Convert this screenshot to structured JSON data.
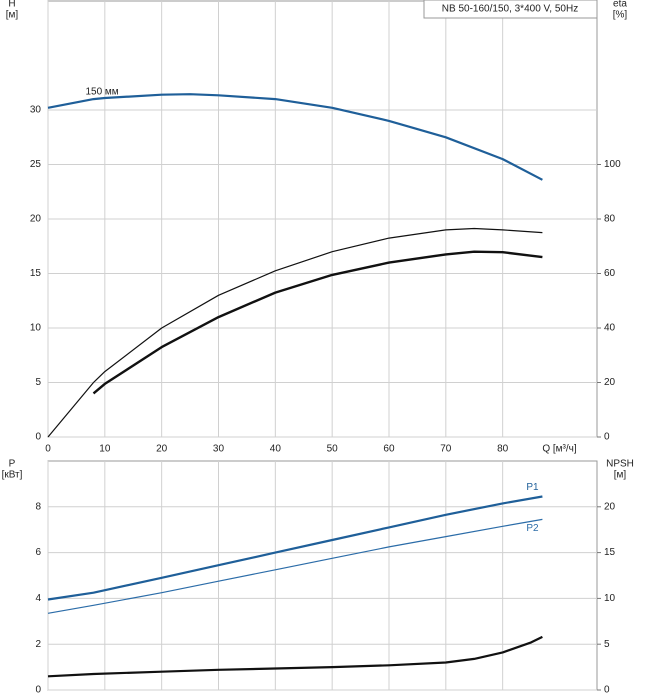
{
  "chart_data": [
    {
      "type": "line",
      "title": "NB 50-160/150, 3*400 V, 50Hz",
      "y_label": "H",
      "y_unit": "[м]",
      "y2_label": "eta",
      "y2_unit": "[%]",
      "x_label": "Q [м³/ч]",
      "xlim": [
        0,
        96.6
      ],
      "xticks": [
        0,
        10,
        20,
        30,
        40,
        50,
        60,
        70,
        80
      ],
      "ylim": [
        0,
        40
      ],
      "yticks": [
        0,
        5,
        10,
        15,
        20,
        25,
        30
      ],
      "y2lim": [
        0,
        160
      ],
      "y2ticks": [
        0,
        20,
        40,
        60,
        80,
        100
      ],
      "grid": true,
      "series": [
        {
          "annotation": "150 мм",
          "color": "#1f5f99",
          "line_width": 2.2,
          "x": [
            0,
            8,
            10,
            20,
            25,
            30,
            40,
            50,
            60,
            70,
            80,
            87
          ],
          "values": [
            30.2,
            31,
            31.1,
            31.4,
            31.45,
            31.35,
            31.0,
            30.2,
            29.0,
            27.5,
            25.5,
            23.6
          ]
        },
        {
          "color": "#111111",
          "line_width": 1.2,
          "axis": "y2",
          "x": [
            0,
            8,
            10,
            20,
            30,
            40,
            50,
            60,
            70,
            75,
            80,
            87
          ],
          "values": [
            0,
            20,
            24,
            40,
            52,
            61,
            68,
            73,
            76,
            76.5,
            76,
            75
          ]
        },
        {
          "color": "#111111",
          "line_width": 2.4,
          "axis": "y2",
          "x": [
            8,
            10,
            20,
            30,
            40,
            50,
            60,
            70,
            75,
            80,
            87
          ],
          "values": [
            16,
            19.5,
            33,
            44,
            53,
            59.5,
            64,
            67,
            68,
            67.8,
            66
          ]
        }
      ]
    },
    {
      "type": "line",
      "y_label": "P",
      "y_unit": "[кВт]",
      "y2_label": "NPSH",
      "y2_unit": "[м]",
      "xlim": [
        0,
        96.6
      ],
      "xticks": [
        0,
        10,
        20,
        30,
        40,
        50,
        60,
        70,
        80
      ],
      "ylim": [
        0,
        10
      ],
      "yticks": [
        0,
        2,
        4,
        6,
        8
      ],
      "y2lim": [
        0,
        25
      ],
      "y2ticks": [
        0,
        5,
        10,
        15,
        20
      ],
      "grid": true,
      "series": [
        {
          "name": "P1",
          "color": "#1f5f99",
          "line_width": 2.2,
          "x": [
            0,
            8,
            20,
            30,
            40,
            50,
            60,
            70,
            80,
            87
          ],
          "values": [
            3.95,
            4.25,
            4.9,
            5.45,
            6.0,
            6.55,
            7.1,
            7.65,
            8.15,
            8.45
          ]
        },
        {
          "name": "P2",
          "color": "#2b6ca8",
          "line_width": 1.2,
          "x": [
            0,
            8,
            20,
            30,
            40,
            50,
            60,
            70,
            80,
            87
          ],
          "values": [
            3.35,
            3.7,
            4.25,
            4.75,
            5.25,
            5.75,
            6.25,
            6.7,
            7.15,
            7.45
          ]
        },
        {
          "color": "#111111",
          "line_width": 2.2,
          "axis": "y2",
          "x": [
            0,
            8,
            20,
            30,
            40,
            50,
            60,
            70,
            75,
            80,
            85,
            87
          ],
          "values": [
            1.5,
            1.75,
            2.0,
            2.2,
            2.35,
            2.5,
            2.7,
            3.0,
            3.4,
            4.1,
            5.2,
            5.8
          ]
        }
      ]
    }
  ]
}
